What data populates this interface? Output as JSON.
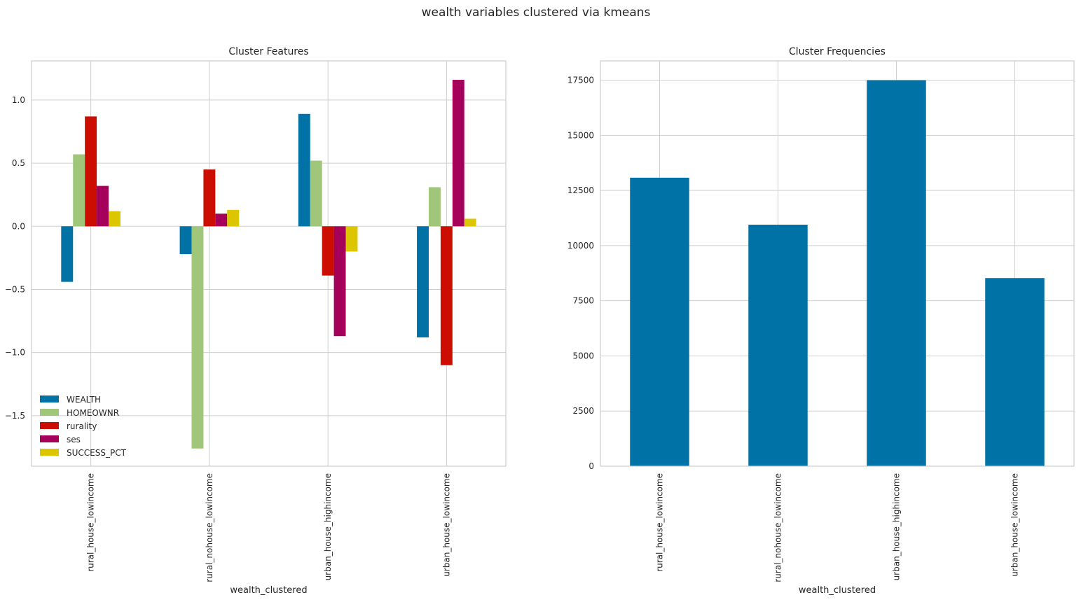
{
  "suptitle": "wealth variables clustered via kmeans",
  "chart_data": [
    {
      "type": "bar",
      "title": "Cluster Features",
      "xlabel": "wealth_clustered",
      "ylabel": "",
      "categories": [
        "rural_house_lowincome",
        "rural_nohouse_lowincome",
        "urban_house_highincome",
        "urban_house_lowincome"
      ],
      "series": [
        {
          "name": "WEALTH",
          "color": "#0072a6",
          "values": [
            -0.44,
            -0.22,
            0.89,
            -0.88
          ]
        },
        {
          "name": "HOMEOWNR",
          "color": "#a0c67a",
          "values": [
            0.57,
            -1.76,
            0.52,
            0.31
          ]
        },
        {
          "name": "rurality",
          "color": "#cc0e00",
          "values": [
            0.87,
            0.45,
            -0.39,
            -1.1
          ]
        },
        {
          "name": "ses",
          "color": "#a5005a",
          "values": [
            0.32,
            0.1,
            -0.87,
            1.16
          ]
        },
        {
          "name": "SUCCESS_PCT",
          "color": "#dbc600",
          "values": [
            0.12,
            0.13,
            -0.2,
            0.06
          ]
        }
      ],
      "ylim": [
        -1.9,
        1.31
      ],
      "yticks": [
        -1.5,
        -1.0,
        -0.5,
        0.0,
        0.5,
        1.0
      ],
      "ytick_labels": [
        "−1.5",
        "−1.0",
        "−0.5",
        "0.0",
        "0.5",
        "1.0"
      ],
      "grid": true,
      "legend_placement": "lower-left"
    },
    {
      "type": "bar",
      "title": "Cluster Frequencies",
      "xlabel": "wealth_clustered",
      "ylabel": "",
      "categories": [
        "rural_house_lowincome",
        "rural_nohouse_lowincome",
        "urban_house_highincome",
        "urban_house_lowincome"
      ],
      "values": [
        13080,
        10950,
        17500,
        8530
      ],
      "color": "#0072a6",
      "ylim": [
        0,
        18375
      ],
      "yticks": [
        0,
        2500,
        5000,
        7500,
        10000,
        12500,
        15000,
        17500
      ],
      "ytick_labels": [
        "0",
        "2500",
        "5000",
        "7500",
        "10000",
        "12500",
        "15000",
        "17500"
      ],
      "grid": true
    }
  ]
}
